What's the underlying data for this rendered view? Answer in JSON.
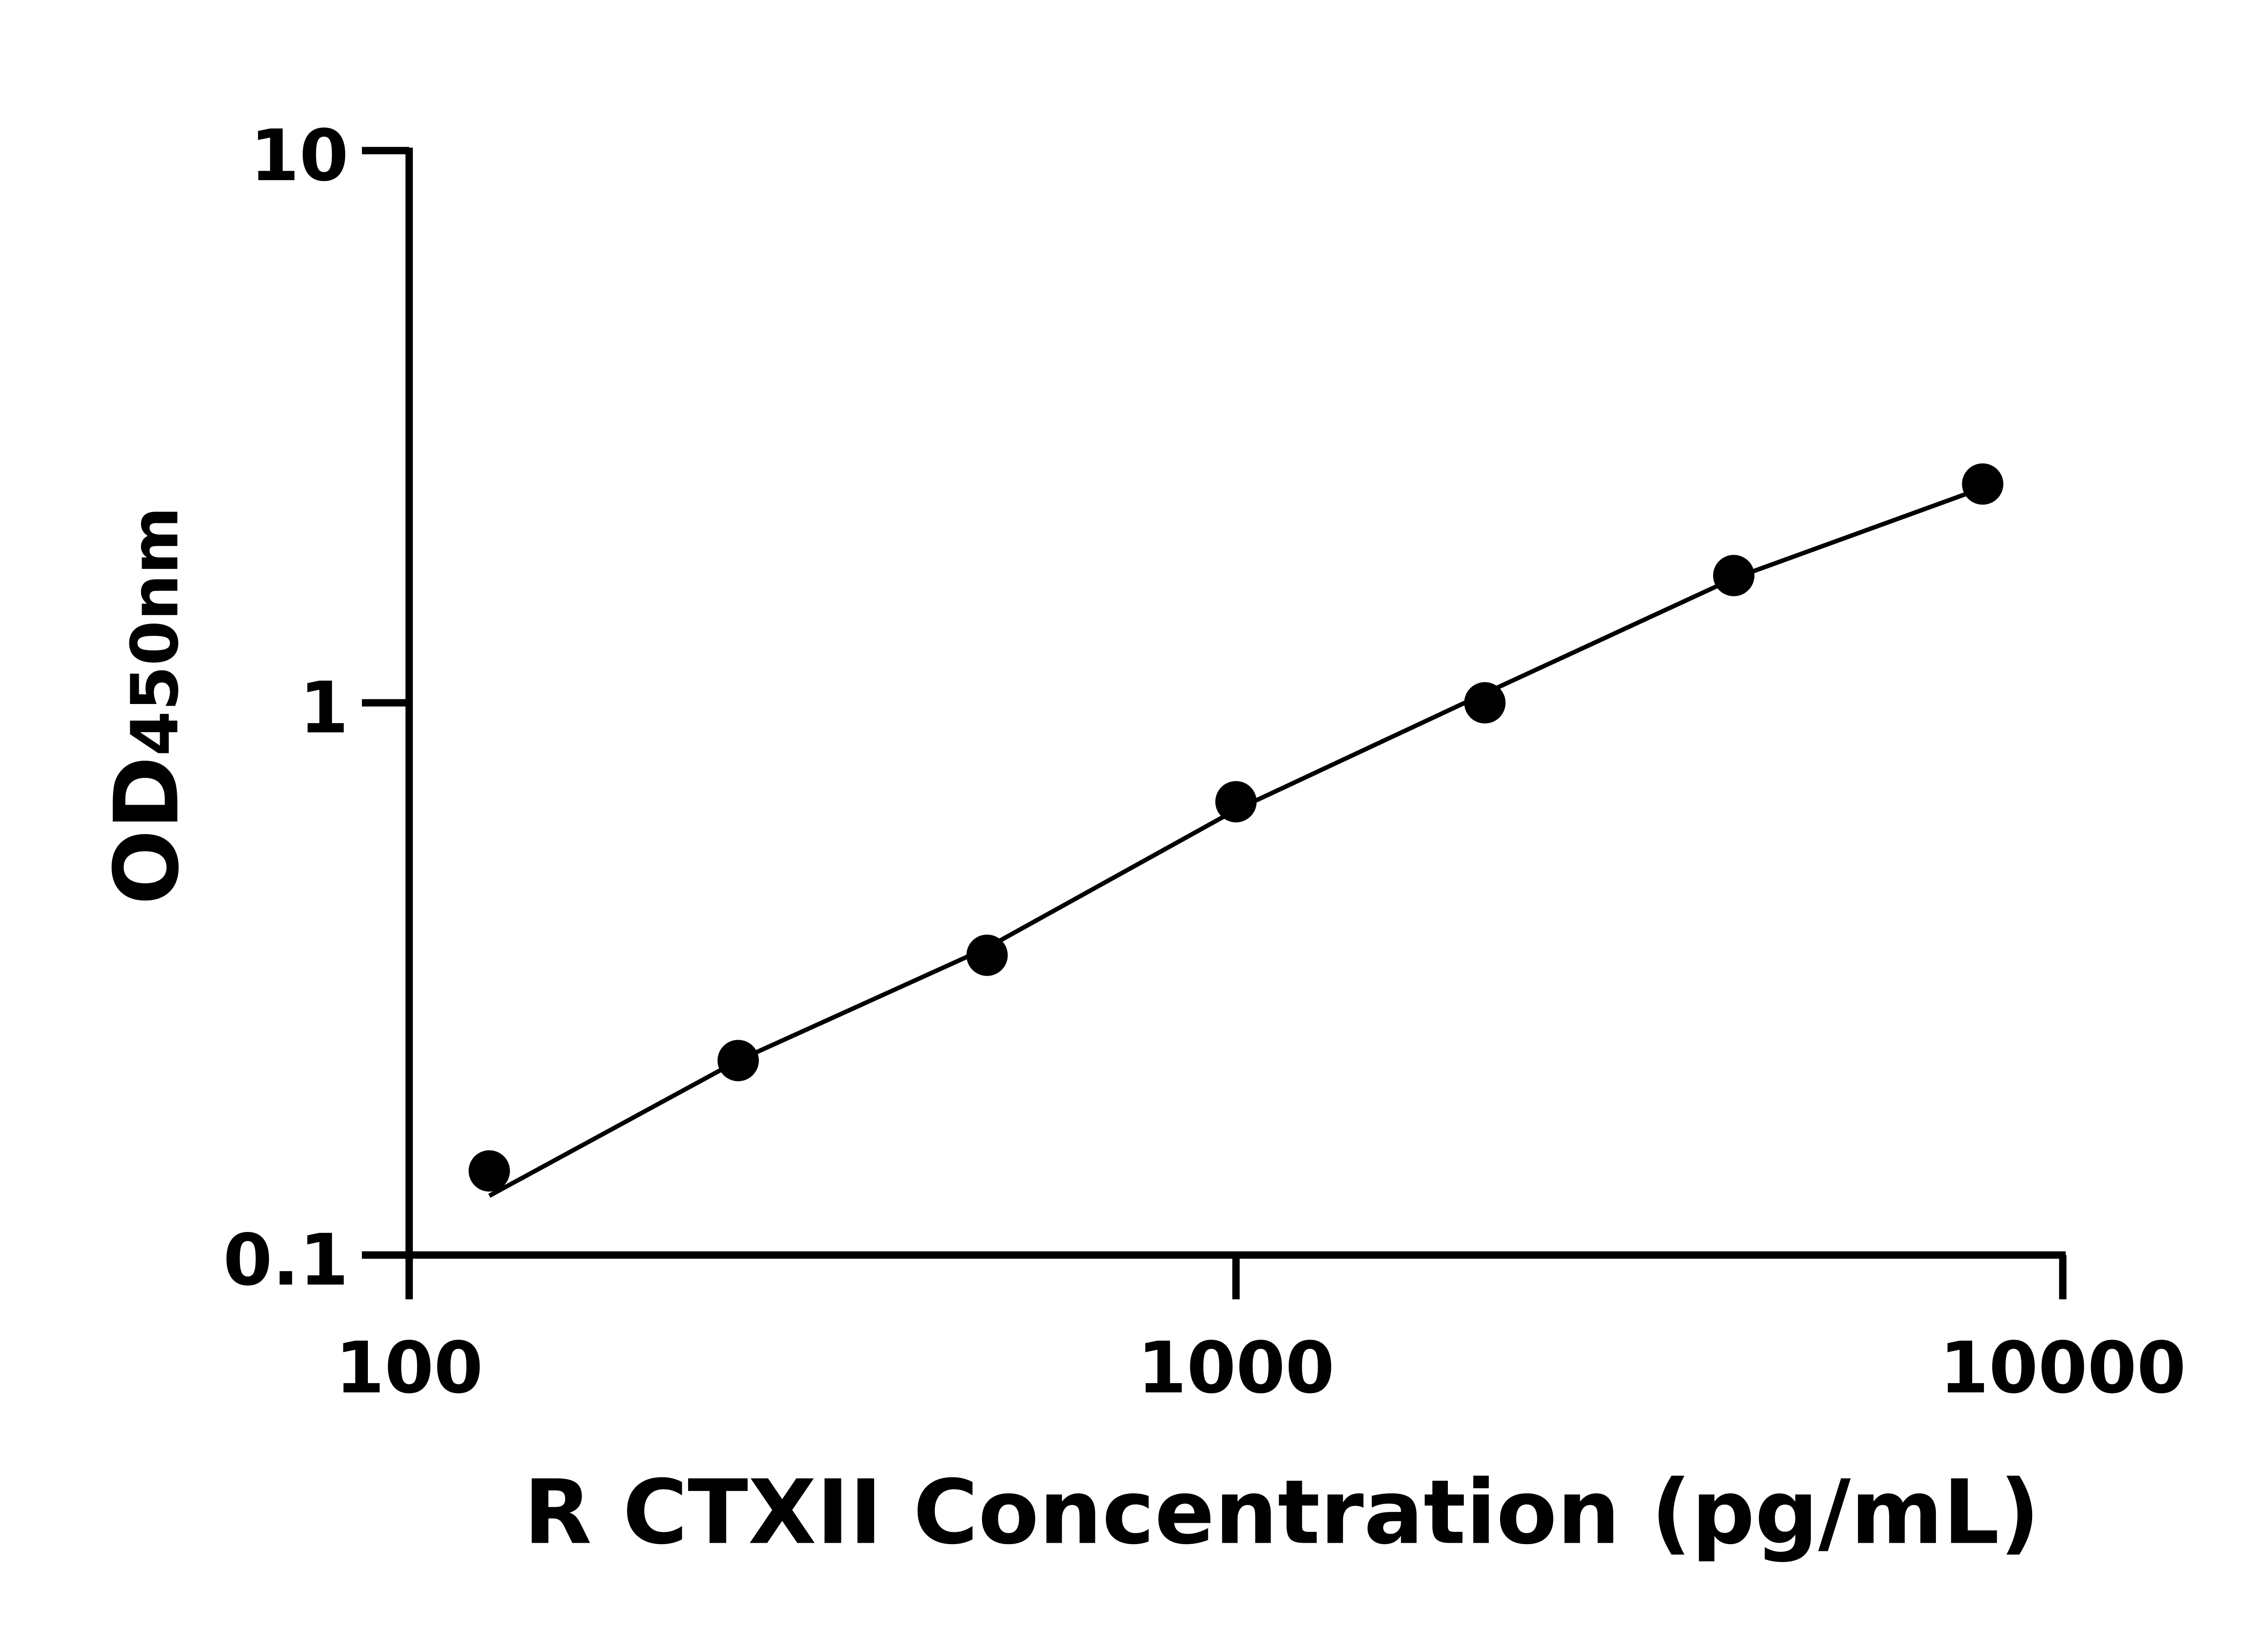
{
  "chart_data": {
    "type": "scatter",
    "title": "",
    "xlabel": "R CTXII Concentration (pg/mL)",
    "ylabel_main": "OD",
    "ylabel_sub": "450nm",
    "x_scale": "log",
    "y_scale": "log",
    "xlim": [
      100,
      10000
    ],
    "ylim": [
      0.1,
      10
    ],
    "x_ticks": [
      "100",
      "1000",
      "10000"
    ],
    "x_tick_values": [
      100,
      1000,
      10000
    ],
    "y_ticks": [
      "0.1",
      "1",
      "10"
    ],
    "y_tick_values": [
      0.1,
      1,
      10
    ],
    "grid": false,
    "legend": "none",
    "colors": {
      "points": "#000000",
      "line": "#000000",
      "axes": "#000000"
    },
    "series": [
      {
        "x": [
          125,
          250,
          500,
          1000,
          2000,
          4000,
          8000
        ],
        "y": [
          0.142,
          0.225,
          0.349,
          0.662,
          1.0,
          1.7,
          2.49
        ]
      }
    ],
    "fit_curve": {
      "x": [
        125,
        250,
        500,
        1000,
        2000,
        4000,
        8000
      ],
      "y": [
        0.128,
        0.225,
        0.36,
        0.64,
        1.04,
        1.68,
        2.45
      ]
    }
  }
}
